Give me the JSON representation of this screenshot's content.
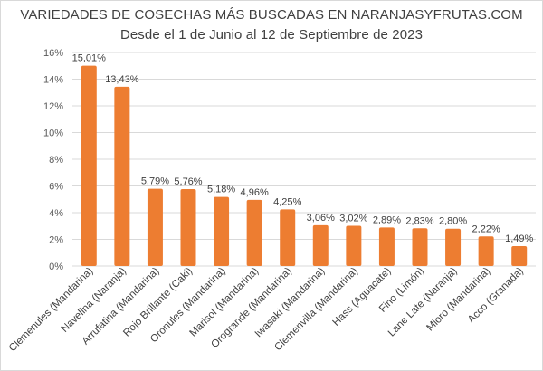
{
  "chart_data": {
    "type": "bar",
    "title": "VARIEDADES DE COSECHAS MÁS BUSCADAS EN NARANJASYFRUTAS.COM",
    "subtitle": "Desde el 1 de Junio al 12 de Septiembre de 2023",
    "xlabel": "",
    "ylabel": "",
    "ylim": [
      0,
      16
    ],
    "yticks": [
      0,
      2,
      4,
      6,
      8,
      10,
      12,
      14,
      16
    ],
    "ytick_labels": [
      "0%",
      "2%",
      "4%",
      "6%",
      "8%",
      "10%",
      "12%",
      "14%",
      "16%"
    ],
    "grid": true,
    "legend": "none",
    "bar_color": "#ED7D31",
    "categories": [
      "Clemenules (Mandarina)",
      "Navelina (Naranja)",
      "Arrufatina (Mandarina)",
      "Rojo Brillante (Caki)",
      "Oronules (Mandarina)",
      "Marisol (Mandarina)",
      "Orogrande (Mandarina)",
      "Iwasaki (Mandarina)",
      "Clemenvilla (Mandarina)",
      "Hass (Aguacate)",
      "Fino (Limón)",
      "Lane Late (Naranja)",
      "Mioro (Mandarina)",
      "Acco (Granada)"
    ],
    "values": [
      15.01,
      13.43,
      5.79,
      5.76,
      5.18,
      4.96,
      4.25,
      3.06,
      3.02,
      2.89,
      2.83,
      2.8,
      2.22,
      1.49
    ],
    "value_labels": [
      "15,01%",
      "13,43%",
      "5,79%",
      "5,76%",
      "5,18%",
      "4,96%",
      "4,25%",
      "3,06%",
      "3,02%",
      "2,89%",
      "2,83%",
      "2,80%",
      "2,22%",
      "1,49%"
    ]
  }
}
